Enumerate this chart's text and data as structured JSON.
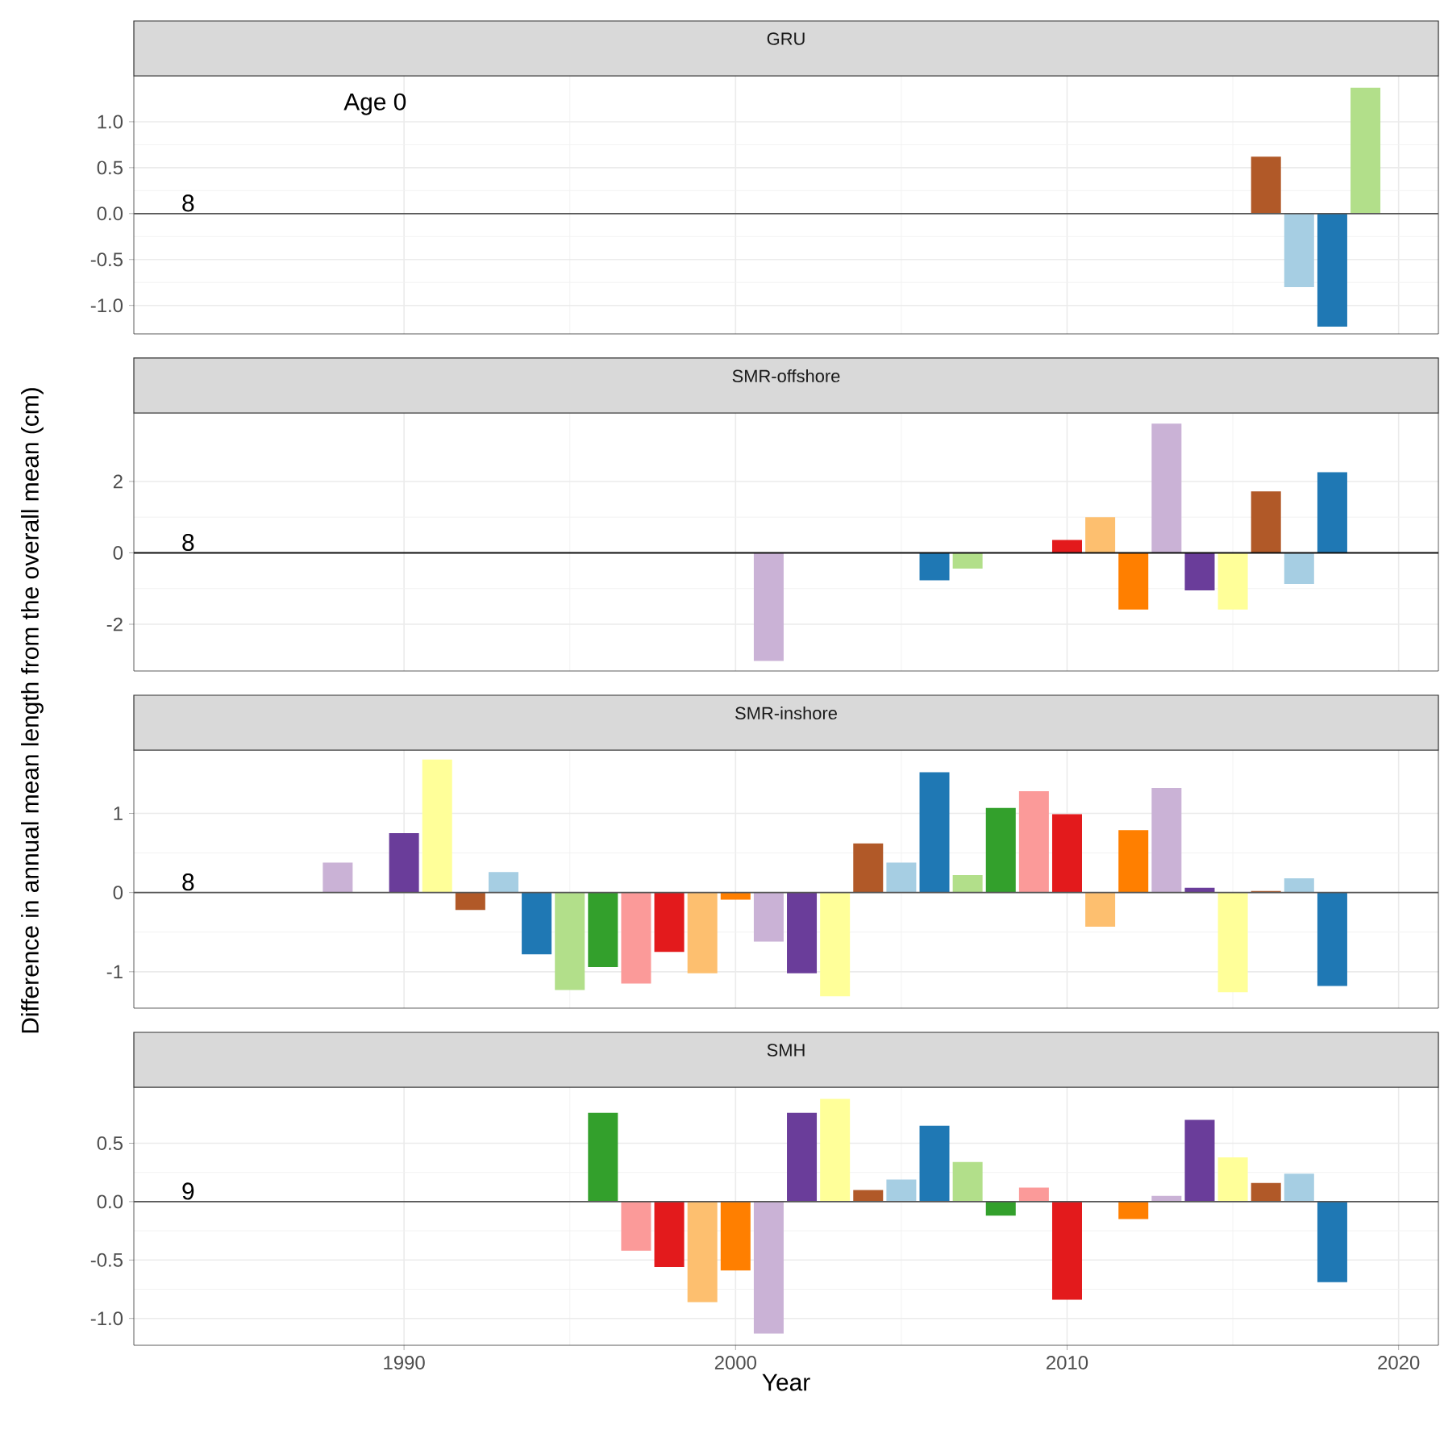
{
  "chart_data": [
    {
      "type": "bar",
      "title": "GRU",
      "ylabel": "Difference in annual mean length from the overall mean (cm)",
      "annotations": [
        "Age 0",
        "8"
      ],
      "tick_labels": "y",
      "grid": true,
      "x": [
        2016,
        2017,
        2018,
        2019
      ],
      "values": [
        0.62,
        -0.8,
        -1.23,
        1.37
      ],
      "colors": [
        "#b15928",
        "#a6cee3",
        "#1f78b4",
        "#b2df8a"
      ],
      "xlim": [
        1981.85,
        2021.2
      ],
      "ylim": [
        -1.31,
        1.5
      ],
      "xticks": [
        1990,
        2000,
        2010,
        2020
      ],
      "yticks": [
        {
          "value": -1,
          "label": "-1.0"
        },
        {
          "value": -0.5,
          "label": "-0.5"
        },
        {
          "value": 0,
          "label": "0.0"
        },
        {
          "value": 0.5,
          "label": "0.5"
        },
        {
          "value": 1,
          "label": "1.0"
        }
      ],
      "ref_lines": [
        {
          "axis": "y",
          "value": 0,
          "color": "#555555"
        }
      ]
    },
    {
      "type": "bar",
      "title": "SMR-offshore",
      "annotations": [
        "8"
      ],
      "tick_labels": "y",
      "grid": true,
      "x": [
        2001,
        2006,
        2007,
        2010,
        2011,
        2012,
        2013,
        2014,
        2015,
        2016,
        2017,
        2018
      ],
      "values": [
        -3.03,
        -0.77,
        -0.44,
        0.36,
        1.0,
        -1.59,
        3.62,
        -1.05,
        -1.59,
        1.72,
        -0.87,
        2.26
      ],
      "colors": [
        "#cab2d6",
        "#1f78b4",
        "#b2df8a",
        "#e31a1c",
        "#fdbf6f",
        "#ff7f00",
        "#cab2d6",
        "#6a3d9a",
        "#ffff99",
        "#b15928",
        "#a6cee3",
        "#1f78b4"
      ],
      "xlim": [
        1981.85,
        2021.2
      ],
      "ylim": [
        -3.31,
        3.92
      ],
      "xticks": [
        1990,
        2000,
        2010,
        2020
      ],
      "yticks": [
        -2,
        0,
        2
      ],
      "ref_lines": [
        {
          "axis": "y",
          "value": 0,
          "color": "#111111"
        }
      ]
    },
    {
      "type": "bar",
      "title": "SMR-inshore",
      "annotations": [
        "8"
      ],
      "tick_labels": "y",
      "grid": true,
      "x": [
        1988,
        1990,
        1991,
        1992,
        1993,
        1994,
        1995,
        1996,
        1997,
        1998,
        1999,
        2000,
        2001,
        2002,
        2003,
        2004,
        2005,
        2006,
        2007,
        2008,
        2009,
        2010,
        2011,
        2012,
        2013,
        2014,
        2015,
        2016,
        2017,
        2018
      ],
      "values": [
        0.38,
        0.75,
        1.68,
        -0.22,
        0.26,
        -0.78,
        -1.23,
        -0.94,
        -1.15,
        -0.75,
        -1.02,
        -0.09,
        -0.62,
        -1.02,
        -1.31,
        0.62,
        0.38,
        1.52,
        0.22,
        1.07,
        1.28,
        0.99,
        -0.43,
        0.79,
        1.32,
        0.06,
        -1.26,
        0.02,
        0.18,
        -1.18
      ],
      "colors": [
        "#cab2d6",
        "#6a3d9a",
        "#ffff99",
        "#b15928",
        "#a6cee3",
        "#1f78b4",
        "#b2df8a",
        "#33a02c",
        "#fb9a99",
        "#e31a1c",
        "#fdbf6f",
        "#ff7f00",
        "#cab2d6",
        "#6a3d9a",
        "#ffff99",
        "#b15928",
        "#a6cee3",
        "#1f78b4",
        "#b2df8a",
        "#33a02c",
        "#fb9a99",
        "#e31a1c",
        "#fdbf6f",
        "#ff7f00",
        "#cab2d6",
        "#6a3d9a",
        "#ffff99",
        "#b15928",
        "#a6cee3",
        "#1f78b4"
      ],
      "xlim": [
        1981.85,
        2021.2
      ],
      "ylim": [
        -1.46,
        1.8
      ],
      "xticks": [
        1990,
        2000,
        2010,
        2020
      ],
      "yticks": [
        -1,
        0,
        1
      ],
      "ref_lines": [
        {
          "axis": "y",
          "value": 0,
          "color": "#555555"
        }
      ]
    },
    {
      "type": "bar",
      "title": "SMH",
      "xlabel": "Year",
      "annotations": [
        "9"
      ],
      "grid": true,
      "x": [
        1996,
        1997,
        1998,
        1999,
        2000,
        2001,
        2002,
        2003,
        2004,
        2005,
        2006,
        2007,
        2008,
        2009,
        2010,
        2012,
        2013,
        2014,
        2015,
        2016,
        2017,
        2018
      ],
      "values": [
        0.76,
        -0.42,
        -0.56,
        -0.86,
        -0.59,
        -1.13,
        0.76,
        0.88,
        0.1,
        0.19,
        0.65,
        0.34,
        -0.12,
        0.12,
        -0.84,
        -0.15,
        0.05,
        0.7,
        0.38,
        0.16,
        0.24,
        -0.69
      ],
      "colors": [
        "#33a02c",
        "#fb9a99",
        "#e31a1c",
        "#fdbf6f",
        "#ff7f00",
        "#cab2d6",
        "#6a3d9a",
        "#ffff99",
        "#b15928",
        "#a6cee3",
        "#1f78b4",
        "#b2df8a",
        "#33a02c",
        "#fb9a99",
        "#e31a1c",
        "#ff7f00",
        "#cab2d6",
        "#6a3d9a",
        "#ffff99",
        "#b15928",
        "#a6cee3",
        "#1f78b4"
      ],
      "xlim": [
        1981.85,
        2021.2
      ],
      "ylim": [
        -1.23,
        0.98
      ],
      "xticks": [
        1990,
        2000,
        2010,
        2020
      ],
      "yticks": [
        {
          "value": -1,
          "label": "-1.0"
        },
        {
          "value": -0.5,
          "label": "-0.5"
        },
        {
          "value": 0,
          "label": "0.0"
        },
        {
          "value": 0.5,
          "label": "0.5"
        }
      ],
      "ref_lines": [
        {
          "axis": "y",
          "value": 0,
          "color": "#555555"
        }
      ]
    }
  ]
}
